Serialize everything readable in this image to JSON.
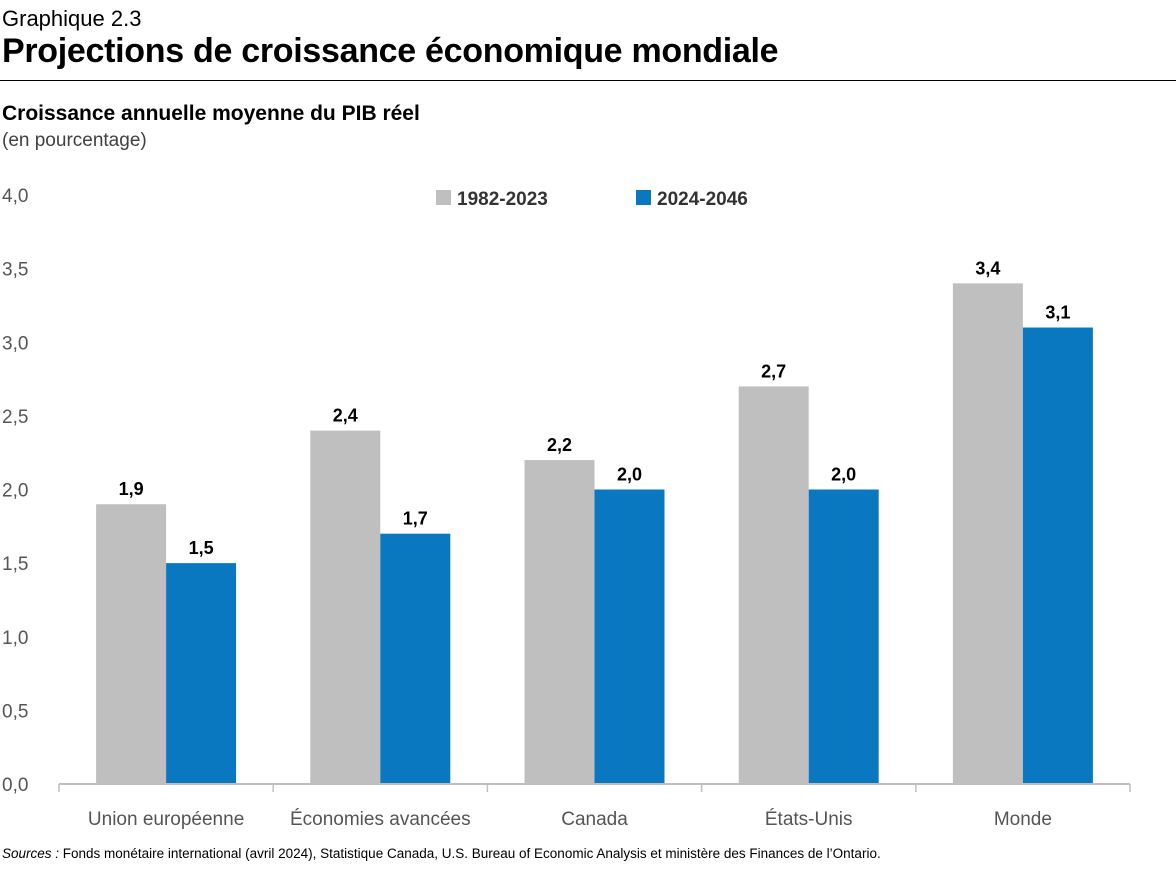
{
  "header": {
    "graph_label": "Graphique 2.3",
    "title": "Projections de croissance économique mondiale"
  },
  "chart_data": {
    "type": "bar",
    "title": "Croissance annuelle moyenne du PIB réel",
    "subtitle": "(en pourcentage)",
    "xlabel": "",
    "ylabel": "",
    "ylim": [
      0,
      4
    ],
    "yticks": [
      "0,0",
      "0,5",
      "1,0",
      "1,5",
      "2,0",
      "2,5",
      "3,0",
      "3,5",
      "4,0"
    ],
    "ytick_values": [
      0,
      0.5,
      1,
      1.5,
      2,
      2.5,
      3,
      3.5,
      4
    ],
    "grid": false,
    "legend_position": "top-center",
    "categories": [
      "Union européenne",
      "Économies avancées",
      "Canada",
      "États-Unis",
      "Monde"
    ],
    "series": [
      {
        "name": "1982-2023",
        "color": "#bfbfbf",
        "values": [
          1.9,
          2.4,
          2.2,
          2.7,
          3.4
        ],
        "labels": [
          "1,9",
          "2,4",
          "2,2",
          "2,7",
          "3,4"
        ]
      },
      {
        "name": "2024-2046",
        "color": "#0a78c0",
        "values": [
          1.5,
          1.7,
          2.0,
          2.0,
          3.1
        ],
        "labels": [
          "1,5",
          "1,7",
          "2,0",
          "2,0",
          "3,1"
        ]
      }
    ]
  },
  "footer": {
    "sources_prefix": "Sources :",
    "sources_text": " Fonds monétaire international (avril 2024), Statistique Canada, U.S. Bureau of Economic Analysis et ministère des Finances de l’Ontario."
  }
}
